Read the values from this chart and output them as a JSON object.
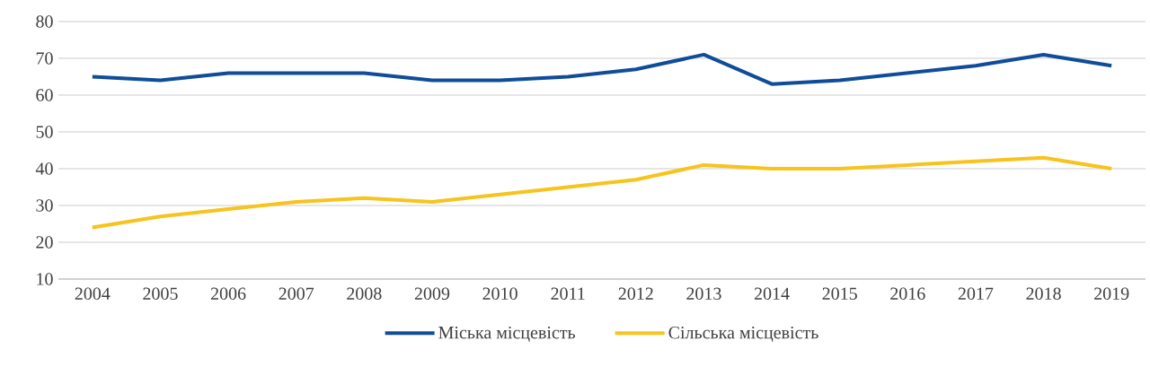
{
  "chart_data": {
    "type": "line",
    "categories": [
      "2004",
      "2005",
      "2006",
      "2007",
      "2008",
      "2009",
      "2010",
      "2011",
      "2012",
      "2013",
      "2014",
      "2015",
      "2016",
      "2017",
      "2018",
      "2019"
    ],
    "series": [
      {
        "name": "Міська місцевість",
        "color": "#0f4c9a",
        "values": [
          65,
          64,
          66,
          66,
          66,
          64,
          64,
          65,
          67,
          71,
          63,
          64,
          66,
          68,
          71,
          68
        ]
      },
      {
        "name": "Сільська місцевість",
        "color": "#f7c31d",
        "values": [
          24,
          27,
          29,
          31,
          32,
          31,
          33,
          35,
          37,
          41,
          40,
          40,
          41,
          42,
          43,
          40
        ]
      }
    ],
    "ylim": [
      10,
      80
    ],
    "yticks": [
      10,
      20,
      30,
      40,
      50,
      60,
      70,
      80
    ],
    "grid": "y",
    "legend": "bottom"
  }
}
